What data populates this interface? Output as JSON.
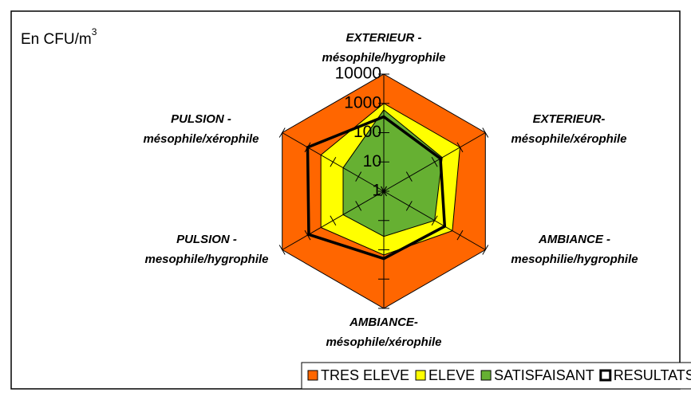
{
  "chart_data": {
    "type": "radar",
    "title": "En CFU/m",
    "title_sup": "3",
    "categories": [
      [
        "EXTERIEUR -",
        "mésophile/hygrophile"
      ],
      [
        "EXTERIEUR-",
        "mésophile/xérophile"
      ],
      [
        "AMBIANCE -",
        "mesophilie/hygrophile"
      ],
      [
        "AMBIANCE-",
        "mésophile/xérophile"
      ],
      [
        "PULSION -",
        "mesophile/hygrophile"
      ],
      [
        "PULSION -",
        "mésophile/xérophile"
      ]
    ],
    "log_scale": true,
    "ylim": [
      1,
      10000
    ],
    "yticks": [
      1,
      10,
      100,
      1000,
      10000
    ],
    "legend": "bottom",
    "series": [
      {
        "name": "TRES ELEVE",
        "color": "#ff6600",
        "filled": true,
        "values": [
          10000,
          10000,
          10000,
          10000,
          10000,
          10000
        ]
      },
      {
        "name": "ELEVE",
        "color": "#ffff00",
        "filled": true,
        "values": [
          1000,
          1000,
          500,
          150,
          300,
          300
        ]
      },
      {
        "name": "SATISFAISANT",
        "color": "#66b032",
        "filled": true,
        "values": [
          600,
          200,
          100,
          35,
          40,
          40
        ]
      },
      {
        "name": "RESULTATS",
        "color": "#000000",
        "filled": false,
        "values": [
          350,
          170,
          250,
          200,
          900,
          1000
        ]
      }
    ]
  }
}
